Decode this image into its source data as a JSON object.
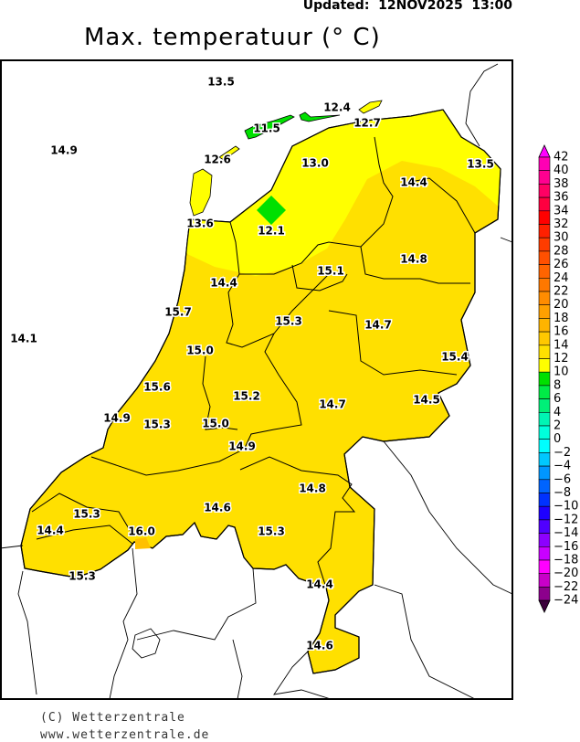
{
  "header": {
    "updated": "Updated:  12NOV2025  13:00",
    "title": "Max. temperatuur (° C)"
  },
  "map": {
    "colors": {
      "land_main": "#ffe000",
      "land_light": "#ffff00",
      "green": "#00e000",
      "orange": "#ffc000",
      "outside": "#ffffff",
      "border": "#000000"
    },
    "stations": [
      "13.5",
      "12.4",
      "11.5",
      "12.7",
      "14.9",
      "12.6",
      "13.0",
      "13.5",
      "14.4",
      "13.6",
      "12.1",
      "15.1",
      "14.8",
      "14.4",
      "15.7",
      "15.3",
      "14.7",
      "14.1",
      "15.4",
      "15.0",
      "15.6",
      "15.2",
      "14.7",
      "14.5",
      "14.9",
      "15.3",
      "15.0",
      "14.9",
      "14.8",
      "15.3",
      "14.6",
      "14.4",
      "16.0",
      "15.3",
      "15.3",
      "14.4",
      "14.6"
    ]
  },
  "legend": {
    "labels": [
      "42",
      "40",
      "38",
      "36",
      "34",
      "32",
      "30",
      "28",
      "26",
      "24",
      "22",
      "20",
      "18",
      "16",
      "14",
      "12",
      "10",
      "8",
      "6",
      "4",
      "2",
      "0",
      "−2",
      "−4",
      "−6",
      "−8",
      "−10",
      "−12",
      "−14",
      "−16",
      "−18",
      "−20",
      "−22",
      "−24"
    ],
    "colors": [
      "#ff00b4",
      "#ff0090",
      "#ff0064",
      "#ff0040",
      "#ff0000",
      "#ff2000",
      "#ff3c00",
      "#ff5000",
      "#ff6400",
      "#ff7800",
      "#ff8c00",
      "#ffa000",
      "#ffb400",
      "#ffc800",
      "#ffe000",
      "#ffff00",
      "#00e000",
      "#00eb46",
      "#00f078",
      "#00f5b4",
      "#00ffdc",
      "#00ffff",
      "#00c8ff",
      "#0096ff",
      "#0064ff",
      "#0032ff",
      "#1e00ff",
      "#5000ff",
      "#8c00ff",
      "#c800ff",
      "#ff00ff",
      "#c800c8",
      "#8c008c",
      "#5a0050"
    ],
    "top_arrow_color": "#ff00ff",
    "bottom_arrow_color": "#3c003c"
  },
  "footer": {
    "copyright": "(C) Wetterzentrale",
    "url": "www.wetterzentrale.de"
  }
}
